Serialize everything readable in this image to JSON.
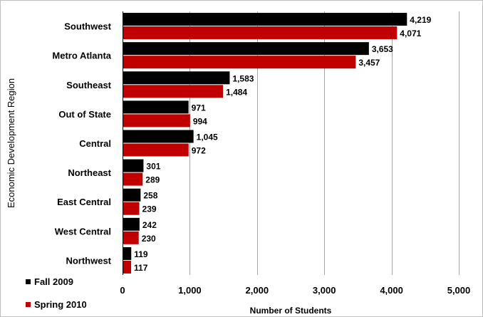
{
  "chart_data": {
    "type": "bar",
    "orientation": "horizontal",
    "categories": [
      "Southwest",
      "Metro Atlanta",
      "Southeast",
      "Out of State",
      "Central",
      "Northeast",
      "East Central",
      "West Central",
      "Northwest"
    ],
    "series": [
      {
        "name": "Fall 2009",
        "color": "#000000",
        "values": [
          4219,
          3653,
          1583,
          971,
          1045,
          301,
          258,
          242,
          119
        ]
      },
      {
        "name": "Spring 2010",
        "color": "#c00000",
        "values": [
          4071,
          3457,
          1484,
          994,
          972,
          289,
          239,
          230,
          117
        ]
      }
    ],
    "data_labels": [
      [
        "4,219",
        "3,653",
        "1,583",
        "971",
        "1,045",
        "301",
        "258",
        "242",
        "119"
      ],
      [
        "4,071",
        "3,457",
        "1,484",
        "994",
        "972",
        "289",
        "239",
        "230",
        "117"
      ]
    ],
    "title": "",
    "xlabel": "Number of Students",
    "ylabel": "Economic Development Region",
    "xlim": [
      0,
      5000
    ],
    "xticks": [
      0,
      1000,
      2000,
      3000,
      4000,
      5000
    ],
    "xtick_labels": [
      "0",
      "1,000",
      "2,000",
      "3,000",
      "4,000",
      "5,000"
    ],
    "grid": "vertical",
    "legend": "bottom-left"
  }
}
